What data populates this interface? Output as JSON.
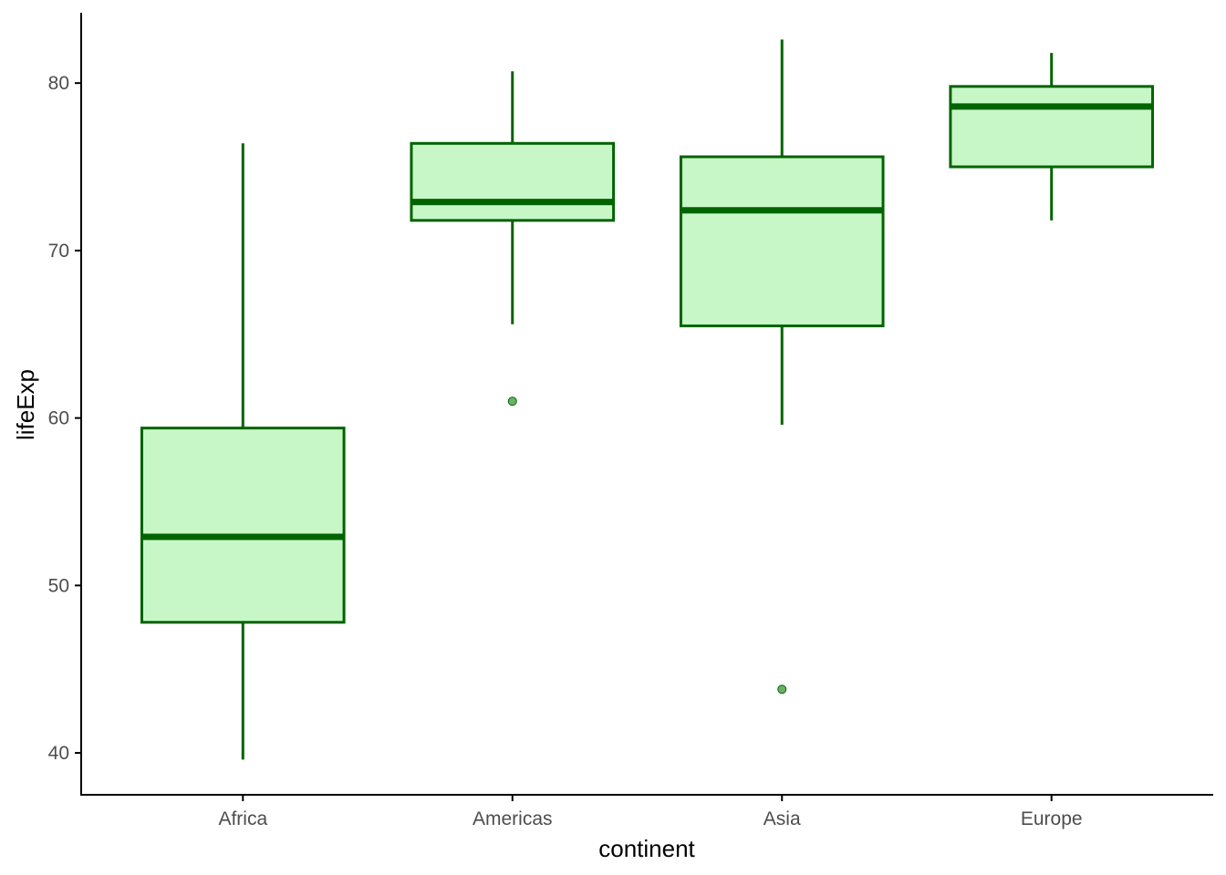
{
  "chart_data": {
    "type": "boxplot",
    "title": "",
    "xlabel": "continent",
    "ylabel": "lifeExp",
    "categories": [
      "Africa",
      "Americas",
      "Asia",
      "Europe"
    ],
    "ylim": [
      37.5,
      84.2
    ],
    "yticks": [
      40,
      50,
      60,
      70,
      80
    ],
    "grid": false,
    "legend": "none",
    "boxes": [
      {
        "category": "Africa",
        "whisker_low": 39.6,
        "q1": 47.8,
        "median": 52.9,
        "q3": 59.4,
        "whisker_high": 76.4,
        "outliers": []
      },
      {
        "category": "Americas",
        "whisker_low": 65.6,
        "q1": 71.8,
        "median": 72.9,
        "q3": 76.4,
        "whisker_high": 80.7,
        "outliers": [
          61.0
        ]
      },
      {
        "category": "Asia",
        "whisker_low": 59.6,
        "q1": 65.5,
        "median": 72.4,
        "q3": 75.6,
        "whisker_high": 82.6,
        "outliers": [
          43.8
        ]
      },
      {
        "category": "Europe",
        "whisker_low": 71.8,
        "q1": 75.0,
        "median": 78.6,
        "q3": 79.8,
        "whisker_high": 81.8,
        "outliers": []
      }
    ],
    "colors": {
      "box_fill": "#c7f7c7",
      "box_stroke": "#006400",
      "outlier_fill": "#6ab06a",
      "axis": "#000000",
      "tick_label": "#4d4d4d"
    }
  }
}
